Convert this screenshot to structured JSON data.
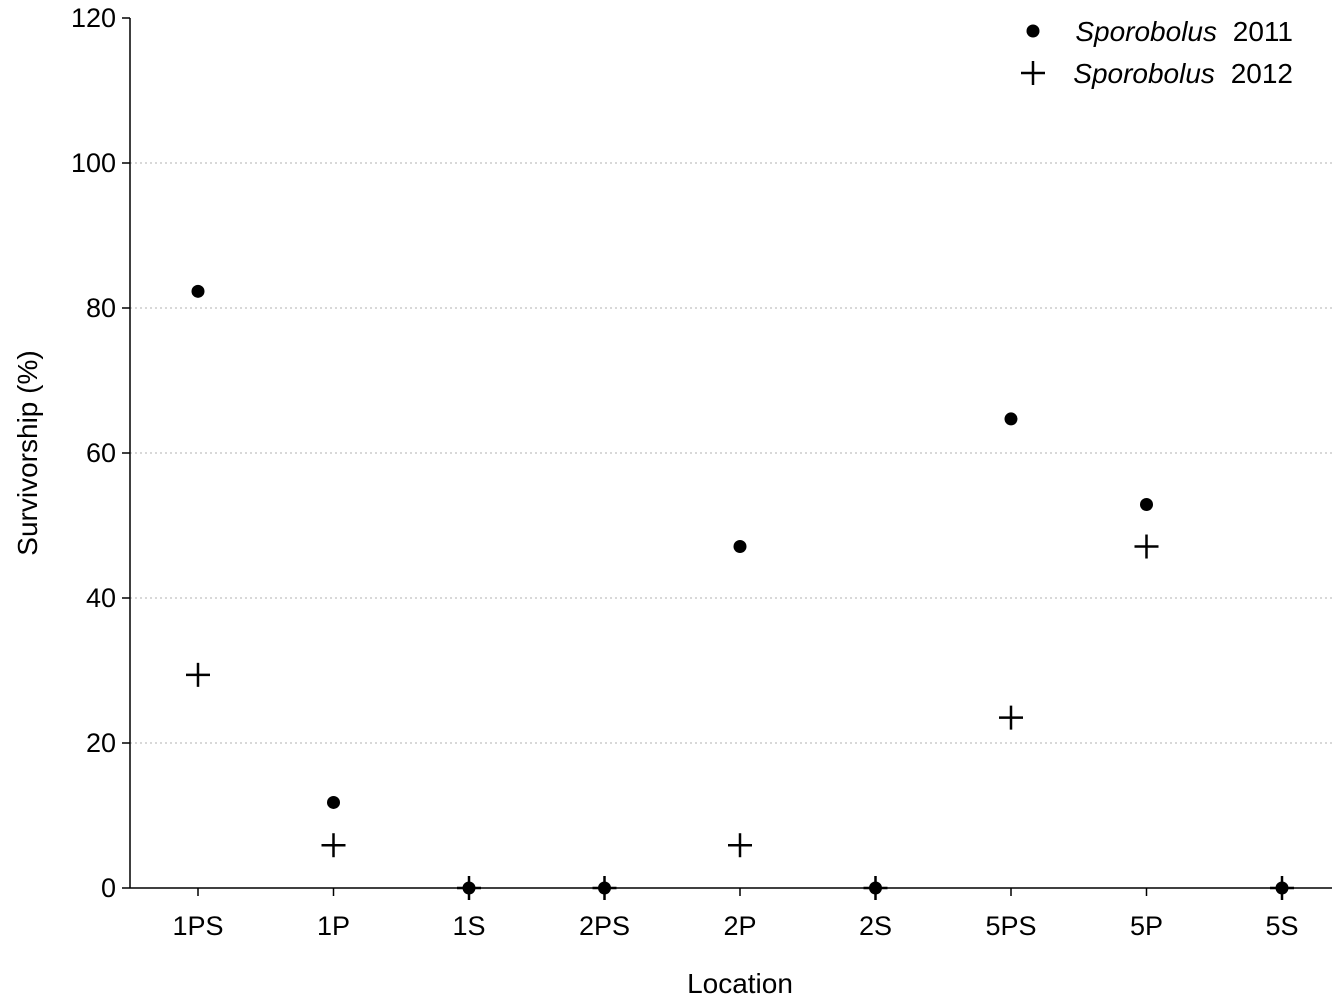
{
  "chart_data": {
    "type": "scatter",
    "title": "",
    "xlabel": "Location",
    "ylabel": "Survivorship (%)",
    "categories": [
      "1PS",
      "1P",
      "1S",
      "2PS",
      "2P",
      "2S",
      "5PS",
      "5P",
      "5S"
    ],
    "ylim": [
      0,
      120
    ],
    "yticks": [
      0,
      20,
      40,
      60,
      80,
      100,
      120
    ],
    "grid": "horizontal dotted",
    "legend_position": "top-right",
    "series": [
      {
        "species": "Sporobolus",
        "year": "2011",
        "marker": "filled-circle",
        "color": "#000000",
        "values": [
          82.3,
          11.8,
          0,
          0,
          47.1,
          0,
          64.7,
          52.9,
          0
        ]
      },
      {
        "species": "Sporobolus",
        "year": "2012",
        "marker": "plus",
        "color": "#000000",
        "values": [
          29.4,
          5.9,
          0,
          0,
          5.9,
          0,
          23.5,
          47.1,
          0
        ]
      }
    ]
  }
}
